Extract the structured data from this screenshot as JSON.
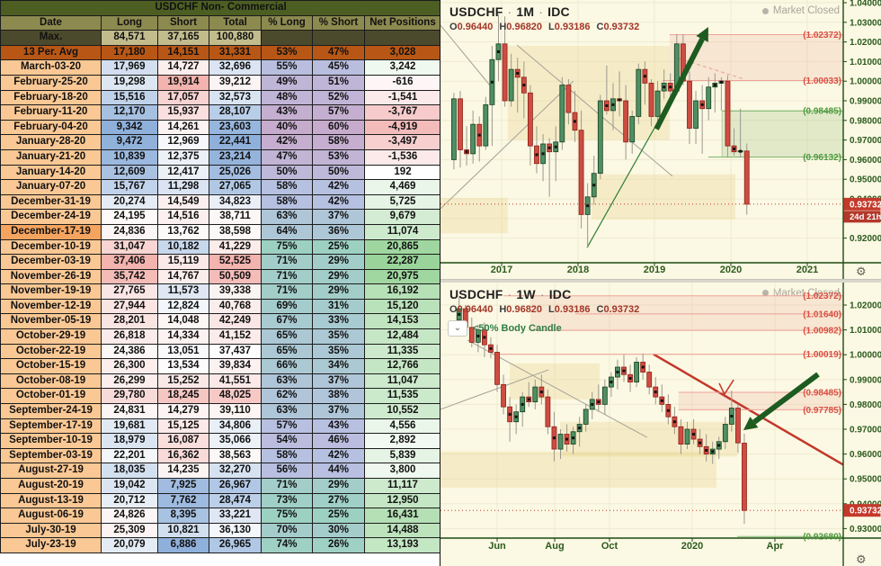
{
  "table": {
    "title": "USDCHF Non- Commercial",
    "columns": [
      "Date",
      "Long",
      "Short",
      "Total",
      "% Long",
      "% Short",
      "Net Positions"
    ],
    "max_row": {
      "label": "Max.",
      "long": 84571,
      "short": 37165,
      "total": 100880
    },
    "avg_row": {
      "label": "13 Per. Avg",
      "long": 17180,
      "short": 14151,
      "total": 31331,
      "pct_long": 53,
      "pct_short": 47,
      "net": 3028
    },
    "highlight_date": "December-17-19",
    "rows": [
      [
        "March-03-20",
        17969,
        14727,
        32696,
        55,
        45,
        3242
      ],
      [
        "February-25-20",
        19298,
        19914,
        39212,
        49,
        51,
        -616
      ],
      [
        "February-18-20",
        15516,
        17057,
        32573,
        48,
        52,
        -1541
      ],
      [
        "February-11-20",
        12170,
        15937,
        28107,
        43,
        57,
        -3767
      ],
      [
        "February-04-20",
        9342,
        14261,
        23603,
        40,
        60,
        -4919
      ],
      [
        "January-28-20",
        9472,
        12969,
        22441,
        42,
        58,
        -3497
      ],
      [
        "January-21-20",
        10839,
        12375,
        23214,
        47,
        53,
        -1536
      ],
      [
        "January-14-20",
        12609,
        12417,
        25026,
        50,
        50,
        192
      ],
      [
        "January-07-20",
        15767,
        11298,
        27065,
        58,
        42,
        4469
      ],
      [
        "December-31-19",
        20274,
        14549,
        34823,
        58,
        42,
        5725
      ],
      [
        "December-24-19",
        24195,
        14516,
        38711,
        63,
        37,
        9679
      ],
      [
        "December-17-19",
        24836,
        13762,
        38598,
        64,
        36,
        11074
      ],
      [
        "December-10-19",
        31047,
        10182,
        41229,
        75,
        25,
        20865
      ],
      [
        "December-03-19",
        37406,
        15119,
        52525,
        71,
        29,
        22287
      ],
      [
        "November-26-19",
        35742,
        14767,
        50509,
        71,
        29,
        20975
      ],
      [
        "November-19-19",
        27765,
        11573,
        39338,
        71,
        29,
        16192
      ],
      [
        "November-12-19",
        27944,
        12824,
        40768,
        69,
        31,
        15120
      ],
      [
        "November-05-19",
        28201,
        14048,
        42249,
        67,
        33,
        14153
      ],
      [
        "October-29-19",
        26818,
        14334,
        41152,
        65,
        35,
        12484
      ],
      [
        "October-22-19",
        24386,
        13051,
        37437,
        65,
        35,
        11335
      ],
      [
        "October-15-19",
        26300,
        13534,
        39834,
        66,
        34,
        12766
      ],
      [
        "October-08-19",
        26299,
        15252,
        41551,
        63,
        37,
        11047
      ],
      [
        "October-01-19",
        29780,
        18245,
        48025,
        62,
        38,
        11535
      ],
      [
        "September-24-19",
        24831,
        14279,
        39110,
        63,
        37,
        10552
      ],
      [
        "September-17-19",
        19681,
        15125,
        34806,
        57,
        43,
        4556
      ],
      [
        "September-10-19",
        18979,
        16087,
        35066,
        54,
        46,
        2892
      ],
      [
        "September-03-19",
        22201,
        16362,
        38563,
        58,
        42,
        5839
      ],
      [
        "August-27-19",
        18035,
        14235,
        32270,
        56,
        44,
        3800
      ],
      [
        "August-20-19",
        19042,
        7925,
        26967,
        71,
        29,
        11117
      ],
      [
        "August-13-19",
        20712,
        7762,
        28474,
        73,
        27,
        12950
      ],
      [
        "August-06-19",
        24826,
        8395,
        33221,
        75,
        25,
        16431
      ],
      [
        "July-30-19",
        25309,
        10821,
        36130,
        70,
        30,
        14488
      ],
      [
        "July-23-19",
        20079,
        6886,
        26965,
        74,
        26,
        13193
      ]
    ]
  },
  "charts": [
    {
      "symbol": "USDCHF",
      "timeframe": "1M",
      "exchange": "IDC",
      "sep": "·",
      "market_status": "Market Closed",
      "ohlc_labels": {
        "o": "O",
        "h": "H",
        "l": "L",
        "c": "C"
      },
      "ohlc": {
        "open": "0.96440",
        "high": "0.96820",
        "low": "0.93186",
        "close": "0.93732"
      },
      "price_badge": "0.93732",
      "countdown": "24d 21h",
      "current_price": 0.93732,
      "settings_icon": "⚙",
      "axis": {
        "min": 0.92,
        "max": 1.04,
        "step": 0.01,
        "decimals": 5
      },
      "x_labels": [
        {
          "label": "2017"
        },
        {
          "label": "2018"
        },
        {
          "label": "2019"
        },
        {
          "label": "2020"
        },
        {
          "label": "2021"
        }
      ],
      "levels": [
        {
          "price": 1.02372,
          "label": "(1.02372)",
          "color": "red",
          "f0": 0.569
        },
        {
          "price": 1.00033,
          "label": "(1.00033)",
          "color": "red",
          "f0": 0.551
        },
        {
          "price": 0.98485,
          "label": "(0.98485)",
          "color": "green",
          "f0": 0.699
        },
        {
          "price": 0.96132,
          "label": "(0.96132)",
          "color": "green",
          "f0": 0.665
        }
      ],
      "zones": [
        {
          "p1": 0.97,
          "p2": 1.018,
          "f0": 0.167,
          "f1": 0.569,
          "kind": "yellow"
        },
        {
          "p1": 0.9225,
          "p2": 0.9405,
          "f0": 0.0,
          "f1": 0.167,
          "kind": "yellow"
        },
        {
          "p1": 0.9295,
          "p2": 0.9525,
          "f0": 0.375,
          "f1": 0.732,
          "kind": "yellow"
        },
        {
          "p1": 1.00033,
          "p2": 1.02372,
          "f0": 0.569,
          "f1": 1.0,
          "kind": "pink"
        },
        {
          "p1": 0.96132,
          "p2": 0.98485,
          "f0": 0.699,
          "f1": 1.0,
          "kind": "green"
        }
      ],
      "trendlines": [
        {
          "f0": 0.0,
          "p0": 0.935,
          "f1": 0.33,
          "p1": 1.0001,
          "kind": "gray"
        },
        {
          "f0": 0.19,
          "p0": 1.0184,
          "f1": 0.576,
          "p1": 0.9515,
          "kind": "gray"
        },
        {
          "f0": 0.0,
          "p0": 1.0285,
          "f1": 0.123,
          "p1": 0.9978,
          "kind": "gray"
        },
        {
          "f0": 0.364,
          "p0": 0.9152,
          "f1": 0.641,
          "p1": 1.0161,
          "kind": "thingreen"
        },
        {
          "f0": 0.592,
          "p0": 1.0116,
          "f1": 0.754,
          "p1": 1.001,
          "kind": "pinkdash"
        }
      ],
      "arrows": [
        {
          "f0": 0.536,
          "p0": 0.9756,
          "f1": 0.665,
          "p1": 1.0276
        }
      ],
      "candles": [
        [
          0.96,
          0.994,
          0.955,
          0.991
        ],
        [
          0.991,
          0.995,
          0.956,
          0.965
        ],
        [
          0.965,
          0.977,
          0.957,
          0.963
        ],
        [
          0.963,
          0.985,
          0.958,
          0.978
        ],
        [
          0.978,
          0.982,
          0.959,
          0.967
        ],
        [
          0.967,
          0.992,
          0.965,
          0.988
        ],
        [
          0.988,
          1.018,
          0.967,
          1.011
        ],
        [
          1.011,
          1.034,
          1.0,
          1.019
        ],
        [
          1.019,
          1.033,
          0.987,
          0.99
        ],
        [
          0.99,
          1.014,
          0.987,
          1.006
        ],
        [
          1.006,
          1.012,
          0.984,
          1.002
        ],
        [
          1.002,
          1.01,
          0.981,
          0.994
        ],
        [
          0.994,
          0.998,
          0.957,
          0.967
        ],
        [
          0.967,
          0.977,
          0.953,
          0.958
        ],
        [
          0.958,
          0.973,
          0.949,
          0.968
        ],
        [
          0.968,
          0.971,
          0.941,
          0.964
        ],
        [
          0.964,
          0.977,
          0.949,
          0.969
        ],
        [
          0.969,
          1.002,
          0.965,
          0.998
        ],
        [
          0.998,
          1.001,
          0.978,
          0.984
        ],
        [
          0.984,
          0.995,
          0.969,
          0.975
        ],
        [
          0.975,
          0.985,
          0.925,
          0.932
        ],
        [
          0.932,
          0.948,
          0.915,
          0.941
        ],
        [
          0.941,
          0.962,
          0.937,
          0.953
        ],
        [
          0.953,
          0.993,
          0.95,
          0.99
        ],
        [
          0.99,
          1.008,
          0.983,
          0.985
        ],
        [
          0.985,
          0.999,
          0.975,
          0.991
        ],
        [
          0.991,
          1.005,
          0.982,
          0.99
        ],
        [
          0.99,
          0.998,
          0.96,
          0.969
        ],
        [
          0.969,
          0.985,
          0.963,
          0.982
        ],
        [
          0.982,
          1.009,
          0.978,
          1.006
        ],
        [
          1.006,
          1.01,
          0.988,
          0.999
        ],
        [
          0.999,
          1.001,
          0.977,
          0.982
        ],
        [
          0.982,
          1.0,
          0.978,
          0.995
        ],
        [
          0.995,
          1.006,
          0.991,
          0.999
        ],
        [
          0.999,
          1.004,
          0.988,
          0.995
        ],
        [
          0.995,
          1.024,
          0.993,
          1.019
        ],
        [
          1.019,
          1.024,
          0.998,
          1.0
        ],
        [
          1.0,
          1.005,
          0.968,
          0.976
        ],
        [
          0.976,
          0.995,
          0.968,
          0.99
        ],
        [
          0.99,
          0.998,
          0.963,
          0.986
        ],
        [
          0.986,
          1.002,
          0.98,
          0.997
        ],
        [
          0.997,
          1.004,
          0.984,
          0.999
        ],
        [
          0.999,
          1.002,
          0.985,
          1.0
        ],
        [
          1.0,
          1.003,
          0.961,
          0.967
        ],
        [
          0.967,
          0.976,
          0.962,
          0.964
        ],
        [
          0.964,
          0.986,
          0.961,
          0.9645
        ],
        [
          0.9644,
          0.9682,
          0.9319,
          0.9373
        ]
      ]
    },
    {
      "symbol": "USDCHF",
      "timeframe": "1W",
      "exchange": "IDC",
      "sep": "·",
      "market_status": "Market Closed",
      "ohlc_labels": {
        "o": "O",
        "h": "H",
        "l": "L",
        "c": "C"
      },
      "ohlc": {
        "open": "0.96440",
        "high": "0.96820",
        "low": "0.93186",
        "close": "0.93732"
      },
      "price_badge": "0.93732",
      "current_price": 0.93732,
      "settings_icon": "⚙",
      "indicator": {
        "collapse_icon": "⌄",
        "label": "<50% Body Candle"
      },
      "axis": {
        "min": 0.93,
        "max": 1.02,
        "step": 0.01,
        "decimals": 5
      },
      "x_labels": [
        {
          "label": "Jun"
        },
        {
          "label": "Aug"
        },
        {
          "label": "Oct"
        },
        {
          "label": "2020",
          "bold": true
        },
        {
          "label": "Apr"
        }
      ],
      "levels": [
        {
          "price": 1.02372,
          "label": "(1.02372)",
          "color": "red",
          "f0": 0.156
        },
        {
          "price": 1.0164,
          "label": "(1.01640)",
          "color": "red",
          "f0": 0.335
        },
        {
          "price": 1.00982,
          "label": "(1.00982)",
          "color": "red",
          "f0": 0.223
        },
        {
          "price": 1.00019,
          "label": "(1.00019)",
          "color": "red",
          "f0": 0.134
        },
        {
          "price": 0.98485,
          "label": "(0.98485)",
          "color": "red",
          "f0": 0.591
        },
        {
          "price": 0.97785,
          "label": "(0.97785)",
          "color": "red",
          "f0": 0.591
        },
        {
          "price": 0.9268,
          "label": "(0.92680)",
          "color": "green",
          "f0": 0.737
        }
      ],
      "zones": [
        {
          "p1": 0.982,
          "p2": 0.9965,
          "f0": 0.172,
          "f1": 0.395,
          "kind": "yellow"
        },
        {
          "p1": 0.959,
          "p2": 0.973,
          "f0": 0.297,
          "f1": 0.737,
          "kind": "yellow"
        },
        {
          "p1": 0.9465,
          "p2": 0.961,
          "f0": 0.0,
          "f1": 0.685,
          "kind": "yellow"
        },
        {
          "p1": 1.00982,
          "p2": 1.02372,
          "f0": 0.223,
          "f1": 1.0,
          "kind": "pink"
        },
        {
          "p1": 0.97785,
          "p2": 0.98485,
          "f0": 0.591,
          "f1": 1.0,
          "kind": "pink"
        }
      ],
      "trendlines": [
        {
          "f0": 0.0,
          "p0": 0.978,
          "f1": 0.268,
          "p1": 0.9939,
          "kind": "gray"
        },
        {
          "f0": 0.067,
          "p0": 1.0059,
          "f1": 0.513,
          "p1": 0.9667,
          "kind": "gray"
        },
        {
          "f0": 0.529,
          "p0": 1.0002,
          "f1": 1.0,
          "p1": 0.9557,
          "kind": "redtrend"
        }
      ],
      "marks": [
        {
          "kind": "redtick",
          "pts": [
            [
              0.692,
              0.9885
            ],
            [
              0.705,
              0.9841
            ],
            [
              0.728,
              0.9899
            ]
          ]
        }
      ],
      "arrows": [
        {
          "f0": 0.9375,
          "p0": 0.9921,
          "f1": 0.752,
          "p1": 0.9696
        }
      ],
      "candles": [
        [
          1.014,
          1.0237,
          1.01,
          1.0185
        ],
        [
          1.0185,
          1.02,
          1.009,
          1.011
        ],
        [
          1.011,
          1.015,
          1.003,
          1.005
        ],
        [
          1.005,
          1.012,
          1.001,
          1.01
        ],
        [
          1.01,
          1.013,
          0.999,
          1.004
        ],
        [
          1.004,
          1.007,
          0.9985,
          1.001
        ],
        [
          1.001,
          1.004,
          0.985,
          0.988
        ],
        [
          0.988,
          0.992,
          0.976,
          0.979
        ],
        [
          0.979,
          0.983,
          0.965,
          0.973
        ],
        [
          0.973,
          0.98,
          0.968,
          0.977
        ],
        [
          0.977,
          0.985,
          0.971,
          0.983
        ],
        [
          0.983,
          0.989,
          0.979,
          0.981
        ],
        [
          0.981,
          0.99,
          0.978,
          0.987
        ],
        [
          0.987,
          0.992,
          0.98,
          0.983
        ],
        [
          0.983,
          0.986,
          0.968,
          0.971
        ],
        [
          0.971,
          0.977,
          0.957,
          0.962
        ],
        [
          0.962,
          0.97,
          0.958,
          0.968
        ],
        [
          0.968,
          0.972,
          0.961,
          0.964
        ],
        [
          0.964,
          0.971,
          0.96,
          0.969
        ],
        [
          0.969,
          0.975,
          0.963,
          0.972
        ],
        [
          0.972,
          0.98,
          0.969,
          0.978
        ],
        [
          0.978,
          0.985,
          0.974,
          0.982
        ],
        [
          0.982,
          0.988,
          0.977,
          0.98
        ],
        [
          0.98,
          0.99,
          0.976,
          0.987
        ],
        [
          0.987,
          0.993,
          0.983,
          0.991
        ],
        [
          0.991,
          0.998,
          0.986,
          0.995
        ],
        [
          0.995,
          1.0,
          0.989,
          0.992
        ],
        [
          0.992,
          0.996,
          0.985,
          0.989
        ],
        [
          0.989,
          0.999,
          0.987,
          0.997
        ],
        [
          0.997,
          1.0005,
          0.99,
          0.993
        ],
        [
          0.993,
          0.996,
          0.984,
          0.987
        ],
        [
          0.987,
          0.991,
          0.98,
          0.983
        ],
        [
          0.983,
          0.988,
          0.977,
          0.98
        ],
        [
          0.98,
          0.984,
          0.972,
          0.975
        ],
        [
          0.975,
          0.979,
          0.968,
          0.971
        ],
        [
          0.971,
          0.974,
          0.96,
          0.964
        ],
        [
          0.964,
          0.973,
          0.962,
          0.97
        ],
        [
          0.97,
          0.974,
          0.964,
          0.966
        ],
        [
          0.966,
          0.97,
          0.96,
          0.963
        ],
        [
          0.963,
          0.968,
          0.957,
          0.96
        ],
        [
          0.96,
          0.965,
          0.956,
          0.962
        ],
        [
          0.962,
          0.967,
          0.958,
          0.965
        ],
        [
          0.965,
          0.975,
          0.962,
          0.972
        ],
        [
          0.972,
          0.9855,
          0.969,
          0.9785
        ],
        [
          0.9785,
          0.98,
          0.9605,
          0.9645
        ],
        [
          0.9644,
          0.9682,
          0.9319,
          0.9373
        ]
      ]
    }
  ],
  "colors": {
    "up": "#4F8F63",
    "up_border": "#173F1E",
    "down": "#CD4D43",
    "down_border": "#8F1F17",
    "wick": "#9B9890",
    "axis_text": "#2B5A1D",
    "axis_line": "#1C4A14",
    "level_red": "#D94F43",
    "level_red_line": "#F0A198",
    "level_green": "#4E9A3F",
    "level_green_line": "#7FB56F",
    "badge": "#C4392B",
    "arrow": "#1D5B21",
    "red_trend": "#C2372A",
    "gray_line": "#A5A198"
  }
}
